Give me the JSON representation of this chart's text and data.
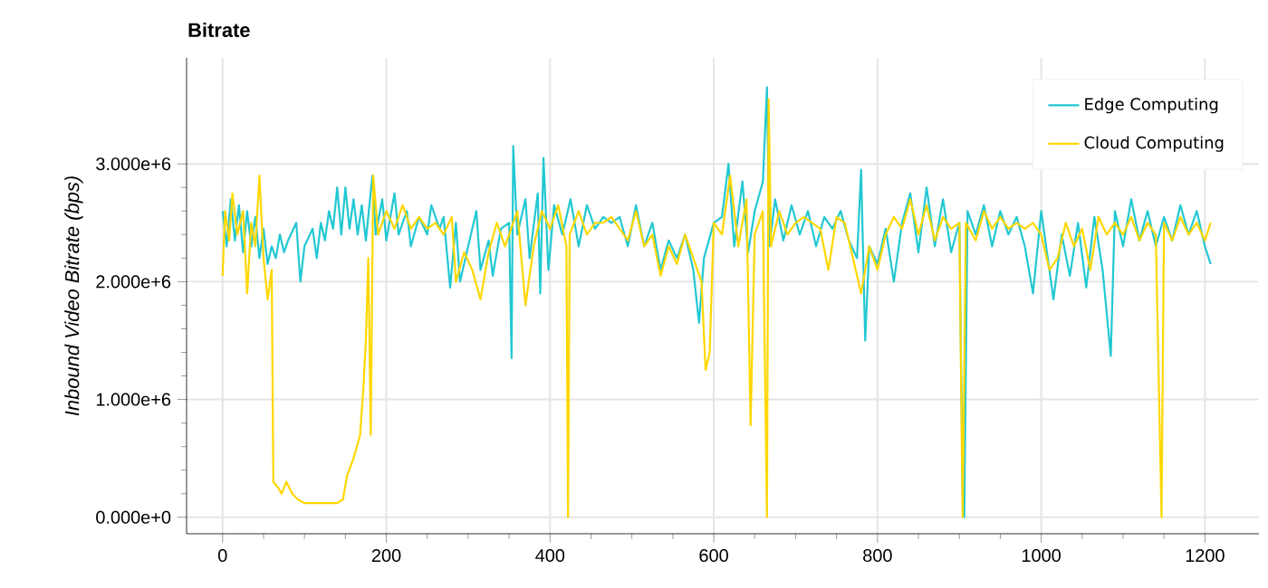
{
  "chart_data": {
    "type": "line",
    "title": "Bitrate",
    "ylabel": "Inbound Video Bitrate (bps)",
    "xlim": [
      -44,
      1266
    ],
    "ylim": [
      -140000,
      3900000
    ],
    "xticks": [
      0,
      200,
      400,
      600,
      800,
      1000,
      1200
    ],
    "yticks": [
      {
        "value": 0,
        "label": "0.000e+0"
      },
      {
        "value": 1000000,
        "label": "1.000e+6"
      },
      {
        "value": 2000000,
        "label": "2.000e+6"
      },
      {
        "value": 3000000,
        "label": "3.000e+6"
      }
    ],
    "grid": true,
    "legend": "top right",
    "marker": "none",
    "line_style": "solid",
    "series": [
      {
        "name": "Edge Computing",
        "color": "#22c8d2",
        "x": [
          0,
          5,
          10,
          15,
          20,
          25,
          30,
          35,
          40,
          45,
          50,
          55,
          60,
          65,
          70,
          75,
          80,
          90,
          95,
          100,
          110,
          115,
          120,
          125,
          130,
          135,
          140,
          145,
          150,
          155,
          160,
          165,
          170,
          175,
          183,
          187,
          195,
          200,
          210,
          215,
          225,
          230,
          240,
          250,
          255,
          265,
          270,
          278,
          285,
          290,
          300,
          310,
          315,
          325,
          330,
          340,
          350,
          353,
          355,
          360,
          370,
          375,
          385,
          388,
          392,
          398,
          405,
          415,
          425,
          435,
          445,
          455,
          465,
          475,
          485,
          495,
          505,
          515,
          525,
          535,
          545,
          555,
          565,
          575,
          582,
          588,
          600,
          610,
          618,
          625,
          635,
          642,
          650,
          660,
          665,
          668,
          675,
          685,
          695,
          705,
          715,
          725,
          735,
          745,
          755,
          765,
          775,
          780,
          785,
          790,
          800,
          810,
          820,
          830,
          840,
          850,
          860,
          870,
          880,
          890,
          900,
          904,
          906,
          910,
          920,
          930,
          940,
          950,
          960,
          970,
          980,
          990,
          1000,
          1010,
          1015,
          1025,
          1035,
          1045,
          1055,
          1065,
          1075,
          1085,
          1090,
          1100,
          1110,
          1120,
          1130,
          1140,
          1150,
          1160,
          1170,
          1180,
          1190,
          1200,
          1207
        ],
        "values": [
          2600000,
          2300000,
          2700000,
          2350000,
          2650000,
          2250000,
          2600000,
          2300000,
          2550000,
          2200000,
          2450000,
          2150000,
          2300000,
          2200000,
          2400000,
          2250000,
          2350000,
          2500000,
          2000000,
          2300000,
          2450000,
          2200000,
          2500000,
          2350000,
          2600000,
          2450000,
          2800000,
          2400000,
          2800000,
          2450000,
          2700000,
          2400000,
          2650000,
          2350000,
          2900000,
          2400000,
          2700000,
          2350000,
          2750000,
          2400000,
          2600000,
          2300000,
          2550000,
          2400000,
          2650000,
          2450000,
          2550000,
          1950000,
          2500000,
          2000000,
          2300000,
          2600000,
          2100000,
          2350000,
          2050000,
          2450000,
          2500000,
          1350000,
          3150000,
          2400000,
          2700000,
          2200000,
          2750000,
          1900000,
          3050000,
          2100000,
          2650000,
          2400000,
          2700000,
          2300000,
          2650000,
          2450000,
          2550000,
          2500000,
          2550000,
          2300000,
          2650000,
          2300000,
          2500000,
          2100000,
          2350000,
          2200000,
          2400000,
          2100000,
          1650000,
          2200000,
          2500000,
          2550000,
          3000000,
          2300000,
          2850000,
          2250000,
          2600000,
          2850000,
          3650000,
          2300000,
          2700000,
          2350000,
          2650000,
          2400000,
          2600000,
          2300000,
          2550000,
          2450000,
          2600000,
          2350000,
          2200000,
          2950000,
          1500000,
          2300000,
          2150000,
          2450000,
          2000000,
          2500000,
          2750000,
          2250000,
          2800000,
          2300000,
          2700000,
          2250000,
          2500000,
          200000,
          0,
          2600000,
          2400000,
          2650000,
          2300000,
          2600000,
          2400000,
          2550000,
          2300000,
          1900000,
          2600000,
          null,
          1850000,
          2400000,
          2050000,
          2500000,
          1950000,
          2550000,
          2100000,
          1370000,
          2600000,
          2300000,
          2700000,
          2350000,
          2600000,
          2300000,
          2550000,
          2350000,
          2650000,
          2400000,
          2600000,
          2300000,
          2150000
        ]
      },
      {
        "name": "Cloud Computing",
        "color": "#ffd700",
        "x": [
          0,
          3,
          8,
          12,
          18,
          25,
          30,
          35,
          40,
          45,
          50,
          55,
          60,
          62,
          68,
          72,
          78,
          85,
          92,
          100,
          120,
          140,
          147,
          152,
          160,
          168,
          172,
          175,
          178,
          181,
          184,
          190,
          200,
          210,
          220,
          230,
          240,
          250,
          260,
          270,
          280,
          285,
          295,
          305,
          315,
          325,
          335,
          345,
          360,
          370,
          380,
          390,
          400,
          410,
          420,
          422,
          424,
          435,
          445,
          455,
          465,
          475,
          485,
          495,
          505,
          515,
          525,
          535,
          545,
          555,
          565,
          575,
          585,
          590,
          595,
          600,
          610,
          620,
          630,
          640,
          645,
          650,
          660,
          665,
          667,
          670,
          680,
          690,
          700,
          710,
          720,
          730,
          740,
          750,
          760,
          770,
          780,
          790,
          800,
          810,
          820,
          830,
          840,
          850,
          860,
          870,
          880,
          890,
          900,
          904,
          908,
          920,
          930,
          940,
          950,
          960,
          970,
          980,
          990,
          1000,
          1010,
          1020,
          1030,
          1040,
          1050,
          1060,
          1070,
          1080,
          1090,
          1100,
          1110,
          1120,
          1130,
          1140,
          1147,
          1150,
          1160,
          1170,
          1180,
          1190,
          1200,
          1207
        ],
        "values": [
          2050000,
          2600000,
          2350000,
          2750000,
          2400000,
          2600000,
          1900000,
          2500000,
          2300000,
          2900000,
          2200000,
          1850000,
          2100000,
          300000,
          250000,
          200000,
          300000,
          200000,
          150000,
          120000,
          120000,
          120000,
          150000,
          350000,
          500000,
          700000,
          1100000,
          1500000,
          2200000,
          700000,
          2900000,
          2400000,
          2600000,
          2450000,
          2650000,
          2450000,
          2550000,
          2450000,
          2500000,
          2400000,
          2550000,
          2000000,
          2250000,
          2100000,
          1850000,
          2250000,
          2500000,
          2300000,
          2600000,
          1800000,
          2300000,
          2600000,
          2450000,
          2650000,
          2300000,
          0,
          2400000,
          2600000,
          2400000,
          2500000,
          2500000,
          2550000,
          2450000,
          2350000,
          2600000,
          2300000,
          2400000,
          2050000,
          2300000,
          2150000,
          2400000,
          2200000,
          2000000,
          1250000,
          1400000,
          2500000,
          2400000,
          2900000,
          2300000,
          2700000,
          780000,
          2400000,
          2600000,
          0,
          3550000,
          2300000,
          2600000,
          2400000,
          2500000,
          2550000,
          2500000,
          2450000,
          2100000,
          2550000,
          2500000,
          2200000,
          1900000,
          2300000,
          2100000,
          2400000,
          2550000,
          2450000,
          2700000,
          2400000,
          2650000,
          2350000,
          2550000,
          2450000,
          2500000,
          0,
          2500000,
          2350000,
          2600000,
          2450000,
          2550000,
          2450000,
          2500000,
          2450000,
          2500000,
          2400000,
          2100000,
          2200000,
          2500000,
          2300000,
          2450000,
          2100000,
          2550000,
          2400000,
          2500000,
          2400000,
          2550000,
          2350000,
          2500000,
          2400000,
          0,
          2500000,
          2350000,
          2550000,
          2400000,
          2500000,
          2350000,
          2500000
        ]
      }
    ]
  }
}
